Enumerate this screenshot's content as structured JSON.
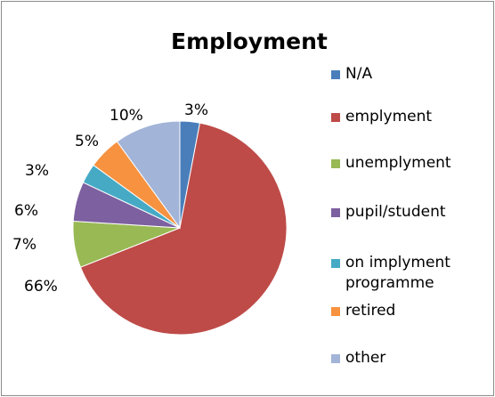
{
  "chart_data": {
    "type": "pie",
    "title": "Employment",
    "legend_position": "right",
    "slices": [
      {
        "label": "N/A",
        "value": 3,
        "value_label": "3%",
        "color": "#4a7ebb"
      },
      {
        "label": "emplyment",
        "value": 66,
        "value_label": "66%",
        "color": "#be4b48"
      },
      {
        "label": "unemplyment",
        "value": 7,
        "value_label": "7%",
        "color": "#98b954"
      },
      {
        "label": "pupil/student",
        "value": 6,
        "value_label": "6%",
        "color": "#7d60a0"
      },
      {
        "label": "on implyment\nprogramme",
        "value": 3,
        "value_label": "3%",
        "color": "#46aac5"
      },
      {
        "label": "retired",
        "value": 5,
        "value_label": "5%",
        "color": "#f69240"
      },
      {
        "label": "other",
        "value": 10,
        "value_label": "10%",
        "color": "#a2b4d8"
      }
    ]
  }
}
